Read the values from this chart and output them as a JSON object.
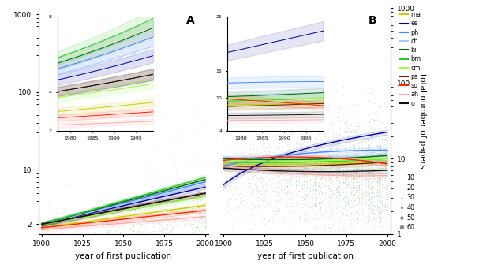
{
  "disciplines": [
    "ma",
    "es",
    "ph",
    "ch",
    "bi",
    "bm",
    "cm",
    "ps",
    "so",
    "ah",
    "o"
  ],
  "colors": {
    "ma": "#cccc00",
    "es": "#000099",
    "ph": "#4488ff",
    "ch": "#aaccff",
    "bi": "#006600",
    "bm": "#22cc22",
    "cm": "#99ff44",
    "ps": "#662200",
    "so": "#ff2200",
    "ah": "#ffaaaa",
    "o": "#111111"
  },
  "xlabel": "year of first publication",
  "ylabel_B": "total number of papers",
  "dot_sizes_label": [
    10,
    20,
    30,
    40,
    50,
    60
  ]
}
